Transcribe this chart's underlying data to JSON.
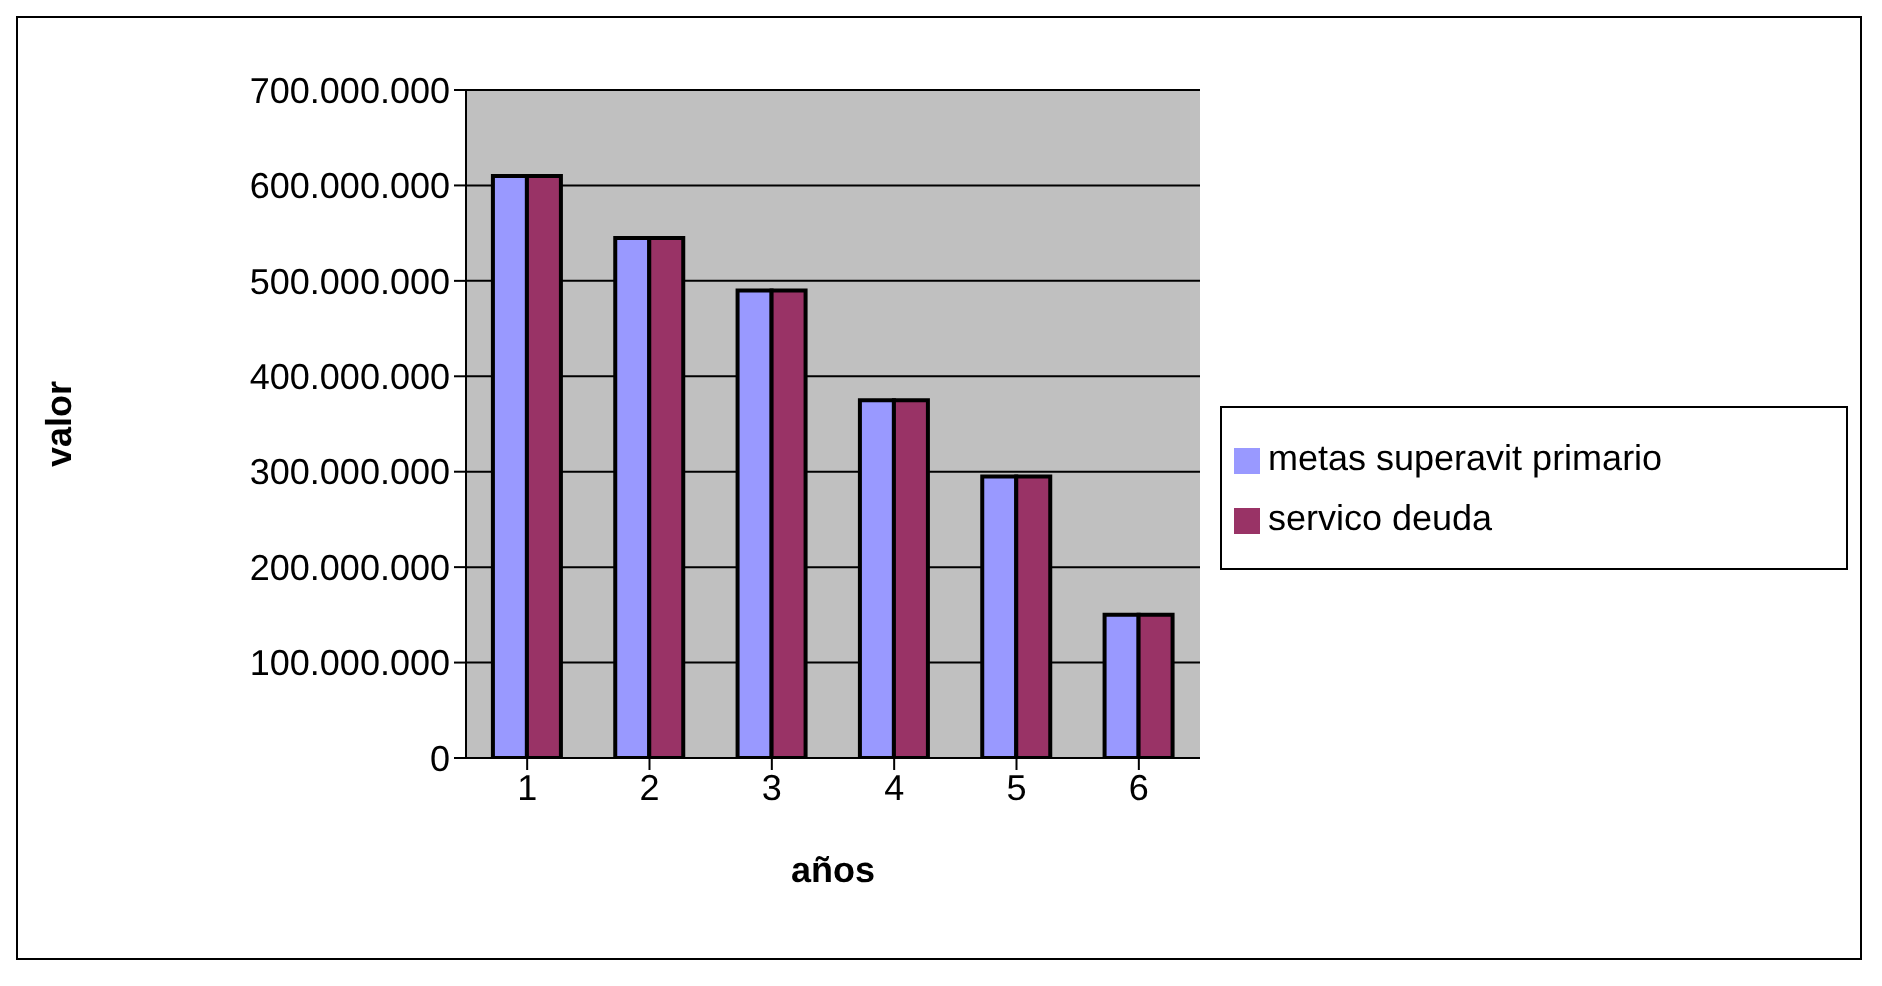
{
  "chart_data": {
    "type": "bar",
    "xlabel": "años",
    "ylabel": "valor",
    "categories": [
      "1",
      "2",
      "3",
      "4",
      "5",
      "6"
    ],
    "series": [
      {
        "name": "metas superavit primario",
        "color": "#9999ff",
        "values": [
          610000000,
          545000000,
          490000000,
          375000000,
          295000000,
          150000000
        ]
      },
      {
        "name": "servico deuda",
        "color": "#993366",
        "values": [
          610000000,
          545000000,
          490000000,
          375000000,
          295000000,
          150000000
        ]
      }
    ],
    "ylim": [
      0,
      700000000
    ],
    "yticks": [
      0,
      {
        "value": 100000000,
        "label": "100.000.000"
      },
      {
        "value": 200000000,
        "label": "200.000.000"
      },
      {
        "value": 300000000,
        "label": "300.000.000"
      },
      {
        "value": 400000000,
        "label": "400.000.000"
      },
      {
        "value": 500000000,
        "label": "500.000.000"
      },
      {
        "value": 600000000,
        "label": "600.000.000"
      },
      {
        "value": 700000000,
        "label": "700.000.000"
      }
    ],
    "grid": "y",
    "legend": "right"
  }
}
